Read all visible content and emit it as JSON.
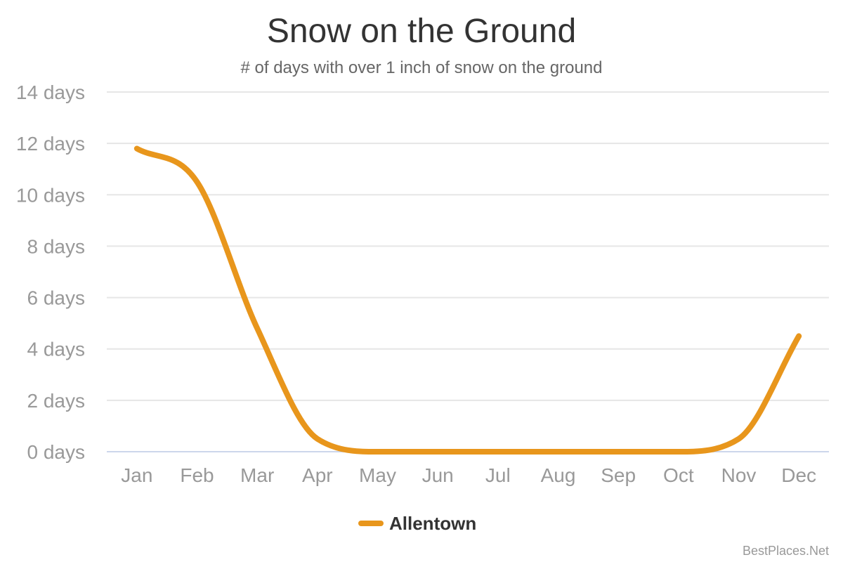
{
  "chart_data": {
    "type": "line",
    "title": "Snow on the Ground",
    "subtitle": "# of days with over 1 inch of snow on the ground",
    "categories": [
      "Jan",
      "Feb",
      "Mar",
      "Apr",
      "May",
      "Jun",
      "Jul",
      "Aug",
      "Sep",
      "Oct",
      "Nov",
      "Dec"
    ],
    "series": [
      {
        "name": "Allentown",
        "color": "#e8961c",
        "values": [
          11.8,
          10.5,
          4.8,
          0.5,
          0.0,
          0.0,
          0.0,
          0.0,
          0.0,
          0.0,
          0.5,
          4.5
        ]
      }
    ],
    "ylim": [
      0,
      14
    ],
    "yticks": [
      0,
      2,
      4,
      6,
      8,
      10,
      12,
      14
    ],
    "ytick_labels": [
      "0 days",
      "2 days",
      "4 days",
      "6 days",
      "8 days",
      "10 days",
      "12 days",
      "14 days"
    ],
    "grid": true,
    "legend_position": "bottom-center"
  },
  "credit": "BestPlaces.Net"
}
